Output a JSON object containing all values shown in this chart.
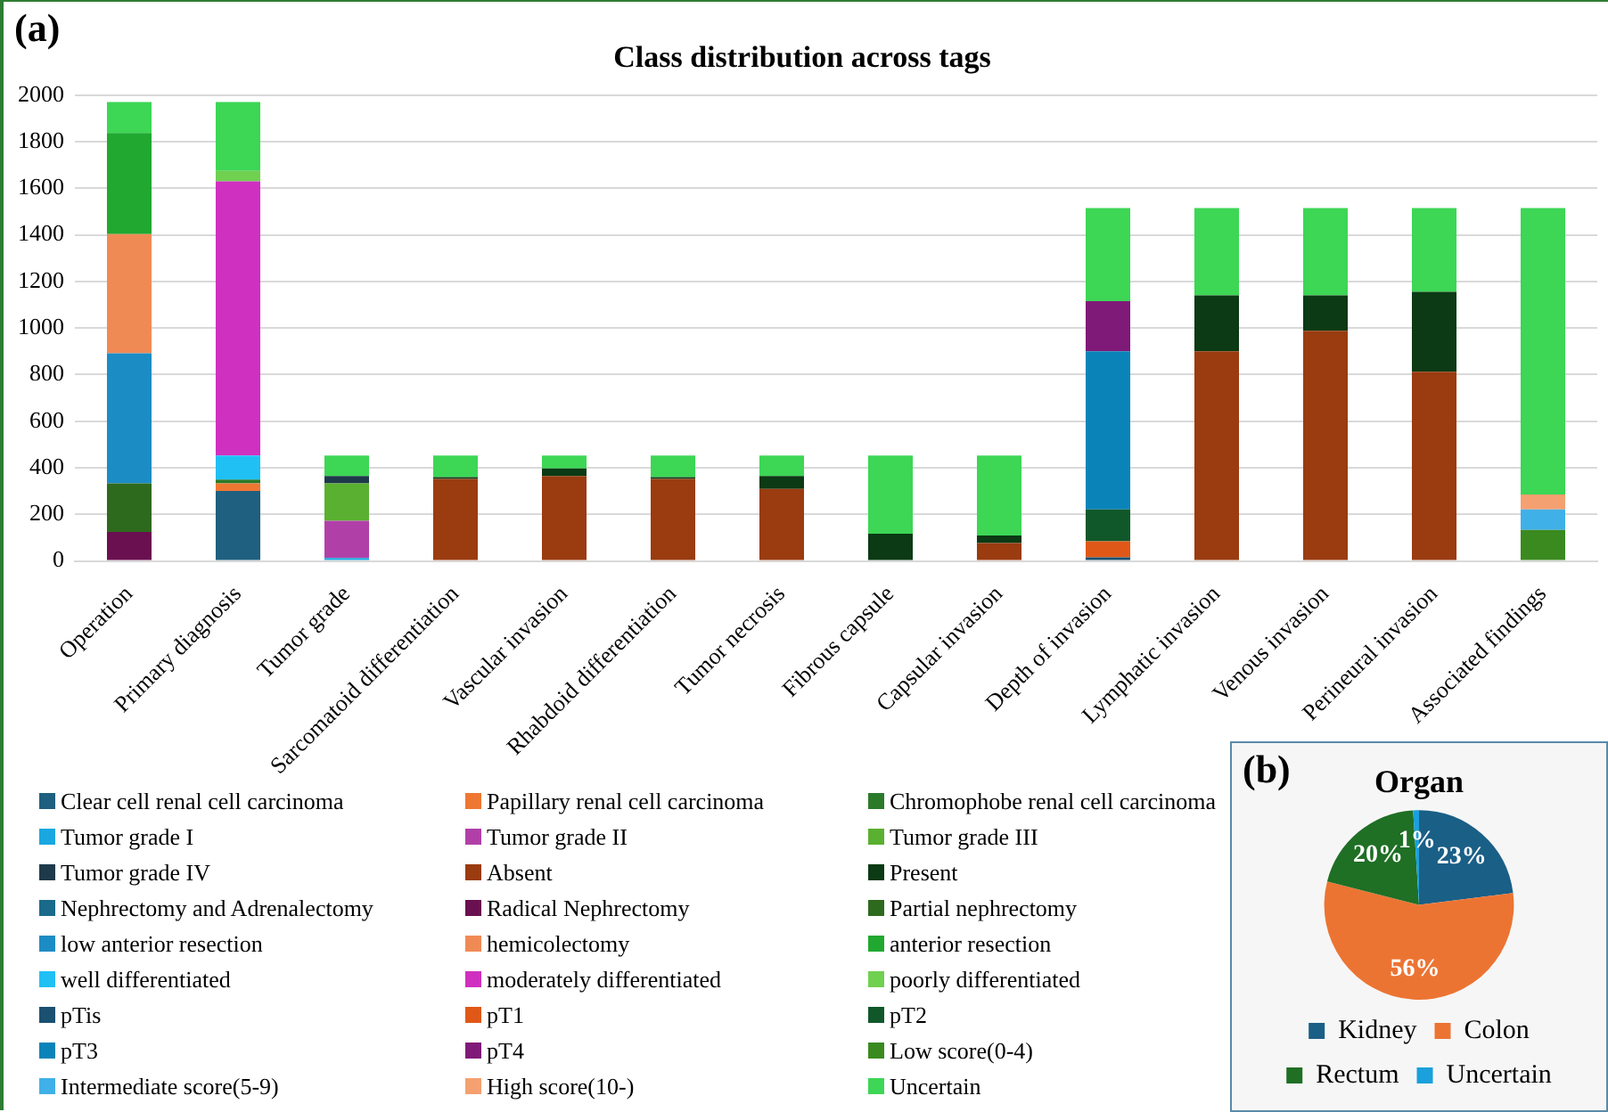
{
  "chart_data": [
    {
      "type": "bar",
      "title": "Class distribution across tags",
      "annotations": [
        "(a)"
      ],
      "stacked": true,
      "legend": "bottom",
      "grid": "y",
      "ylim": [
        0,
        2000
      ],
      "yticks": [
        0,
        200,
        400,
        600,
        800,
        1000,
        1200,
        1400,
        1600,
        1800,
        2000
      ],
      "categories": [
        "Operation",
        "Primary diagnosis",
        "Tumor grade",
        "Sarcomatoid differentiation",
        "Vascular invasion",
        "Rhabdoid differentiation",
        "Tumor necrosis",
        "Fibrous capsule",
        "Capsular invasion",
        "Depth of invasion",
        "Lymphatic invasion",
        "Venous invasion",
        "Perineural invasion",
        "Associated findings"
      ],
      "series": [
        {
          "name": "Clear cell renal cell carcinoma",
          "color": "#1f5f7f",
          "values": [
            null,
            301,
            null,
            null,
            null,
            null,
            null,
            null,
            null,
            null,
            null,
            null,
            null,
            null
          ]
        },
        {
          "name": "Papillary renal cell carcinoma",
          "color": "#ee7733",
          "values": [
            null,
            32,
            null,
            null,
            null,
            null,
            null,
            null,
            null,
            null,
            null,
            null,
            null,
            null
          ]
        },
        {
          "name": "Chromophobe renal cell carcinoma",
          "color": "#2a7a2a",
          "values": [
            null,
            16,
            null,
            null,
            null,
            null,
            null,
            null,
            null,
            null,
            null,
            null,
            null,
            null
          ]
        },
        {
          "name": "Tumor grade I",
          "color": "#1aa7e0",
          "values": [
            null,
            null,
            13,
            null,
            null,
            null,
            null,
            null,
            null,
            null,
            null,
            null,
            null,
            null
          ]
        },
        {
          "name": "Tumor grade II",
          "color": "#b040a8",
          "values": [
            null,
            null,
            160,
            null,
            null,
            null,
            null,
            null,
            null,
            null,
            null,
            null,
            null,
            null
          ]
        },
        {
          "name": "Tumor grade III",
          "color": "#5ab030",
          "values": [
            null,
            null,
            160,
            null,
            null,
            null,
            null,
            null,
            null,
            null,
            null,
            null,
            null,
            null
          ]
        },
        {
          "name": "Tumor grade IV",
          "color": "#1e3a4a",
          "values": [
            null,
            null,
            32,
            null,
            null,
            null,
            null,
            null,
            null,
            null,
            null,
            null,
            null,
            null
          ]
        },
        {
          "name": "Absent",
          "color": "#9a3b10",
          "values": [
            null,
            null,
            null,
            352,
            365,
            352,
            309,
            null,
            77,
            null,
            900,
            988,
            812,
            null
          ]
        },
        {
          "name": "Present",
          "color": "#0b3a14",
          "values": [
            null,
            null,
            null,
            8,
            32,
            8,
            56,
            117,
            32,
            null,
            240,
            152,
            344,
            null
          ]
        },
        {
          "name": "Nephrectomy and Adrenalectomy",
          "color": "#1a6a8a",
          "values": [
            null,
            null,
            null,
            null,
            null,
            null,
            null,
            null,
            null,
            null,
            null,
            null,
            null,
            null
          ]
        },
        {
          "name": "Radical Nephrectomy",
          "color": "#6a1050",
          "values": [
            125,
            null,
            null,
            null,
            null,
            null,
            null,
            null,
            null,
            null,
            null,
            null,
            null,
            null
          ]
        },
        {
          "name": "Partial nephrectomy",
          "color": "#2e6a1e",
          "values": [
            208,
            null,
            null,
            null,
            null,
            null,
            null,
            null,
            null,
            null,
            null,
            null,
            null,
            null
          ]
        },
        {
          "name": "low anterior resection",
          "color": "#1c8cc4",
          "values": [
            559,
            null,
            null,
            null,
            null,
            null,
            null,
            null,
            null,
            null,
            null,
            null,
            null,
            null
          ]
        },
        {
          "name": "hemicolectomy",
          "color": "#f08a55",
          "values": [
            511,
            null,
            null,
            null,
            null,
            null,
            null,
            null,
            null,
            null,
            null,
            null,
            null,
            null
          ]
        },
        {
          "name": "anterior resection",
          "color": "#20a830",
          "values": [
            435,
            null,
            null,
            null,
            null,
            null,
            null,
            null,
            null,
            null,
            null,
            null,
            null,
            null
          ]
        },
        {
          "name": "well differentiated",
          "color": "#20c0f5",
          "values": [
            null,
            104,
            null,
            null,
            null,
            null,
            null,
            null,
            null,
            null,
            null,
            null,
            null,
            null
          ]
        },
        {
          "name": "moderately differentiated",
          "color": "#d030c0",
          "values": [
            null,
            1177,
            null,
            null,
            null,
            null,
            null,
            null,
            null,
            null,
            null,
            null,
            null,
            null
          ]
        },
        {
          "name": "poorly differentiated",
          "color": "#70d050",
          "values": [
            null,
            45,
            null,
            null,
            null,
            null,
            null,
            null,
            null,
            null,
            null,
            null,
            null,
            null
          ]
        },
        {
          "name": "pTis",
          "color": "#1a5070",
          "values": [
            null,
            null,
            null,
            null,
            null,
            null,
            null,
            null,
            null,
            16,
            null,
            null,
            null,
            null
          ]
        },
        {
          "name": "pT1",
          "color": "#e05818",
          "values": [
            null,
            null,
            null,
            null,
            null,
            null,
            null,
            null,
            null,
            69,
            null,
            null,
            null,
            null
          ]
        },
        {
          "name": "pT2",
          "color": "#10582a",
          "values": [
            null,
            null,
            null,
            null,
            null,
            null,
            null,
            null,
            null,
            136,
            null,
            null,
            null,
            null
          ]
        },
        {
          "name": "pT3",
          "color": "#0a84b8",
          "values": [
            null,
            null,
            null,
            null,
            null,
            null,
            null,
            null,
            null,
            679,
            null,
            null,
            null,
            null
          ]
        },
        {
          "name": "pT4",
          "color": "#801a78",
          "values": [
            null,
            null,
            null,
            null,
            null,
            null,
            null,
            null,
            null,
            216,
            null,
            null,
            null,
            null
          ]
        },
        {
          "name": "Low score(0-4)",
          "color": "#3a8a20",
          "values": [
            null,
            null,
            null,
            null,
            null,
            null,
            null,
            null,
            null,
            null,
            null,
            null,
            null,
            133
          ]
        },
        {
          "name": "Intermediate score(5-9)",
          "color": "#40b0e8",
          "values": [
            null,
            null,
            null,
            null,
            null,
            null,
            null,
            null,
            null,
            null,
            null,
            null,
            null,
            88
          ]
        },
        {
          "name": "High score(10-)",
          "color": "#f5a070",
          "values": [
            null,
            null,
            null,
            null,
            null,
            null,
            null,
            null,
            null,
            null,
            null,
            null,
            null,
            64
          ]
        },
        {
          "name": "Uncertain",
          "color": "#3dd655",
          "values": [
            133,
            296,
            88,
            93,
            56,
            93,
            88,
            336,
            344,
            399,
            375,
            375,
            359,
            1230
          ]
        }
      ]
    },
    {
      "type": "pie",
      "title": "Organ",
      "annotations": [
        "(b)"
      ],
      "legend": "bottom",
      "categories": [
        "Kidney",
        "Colon",
        "Rectum",
        "Uncertain"
      ],
      "values": [
        23,
        56,
        20,
        1
      ],
      "colors": [
        "#1a5f86",
        "#ec7433",
        "#1f6f25",
        "#1aa0dd"
      ],
      "value_labels": [
        "23%",
        "56%",
        "20%",
        "1%"
      ]
    }
  ]
}
